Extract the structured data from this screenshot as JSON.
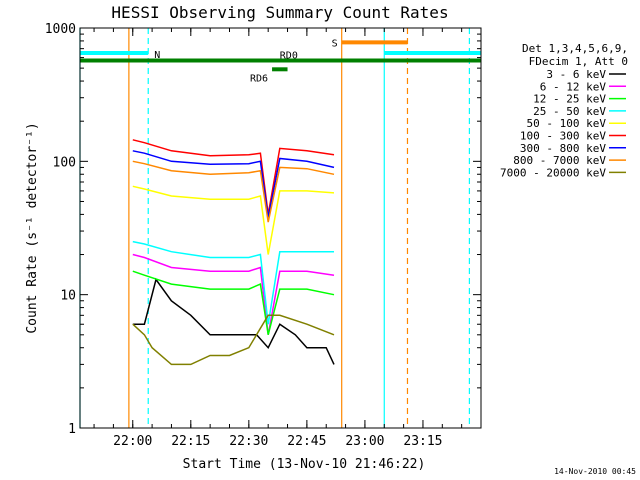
{
  "chart_data": {
    "type": "line",
    "title": "HESSI Observing Summary Count Rates",
    "xlabel": "Start Time (13-Nov-10 21:46:22)",
    "ylabel": "Count Rate (s⁻¹ detector⁻¹)",
    "y_scale": "log",
    "ylim": [
      1,
      1000
    ],
    "xlim": [
      "21:46:22",
      "23:30:00"
    ],
    "x_ticks": [
      "22:00",
      "22:15",
      "22:30",
      "22:45",
      "23:00",
      "23:15"
    ],
    "y_ticks": [
      "1",
      "10",
      "100",
      "1000"
    ],
    "grid": false,
    "legend_position": "right",
    "legend_header": [
      "Det 1,3,4,5,6,9,",
      "FDecim 1, Att 0"
    ],
    "series": [
      {
        "name": "3 - 6 keV",
        "color": "#000000",
        "x": [
          "22:00",
          "22:03",
          "22:06",
          "22:10",
          "22:15",
          "22:20",
          "22:25",
          "22:30",
          "22:32",
          "22:35",
          "22:38",
          "22:42",
          "22:45",
          "22:50",
          "22:52"
        ],
        "y": [
          6,
          6,
          13,
          9,
          7,
          5,
          5,
          5,
          5,
          4,
          6,
          5,
          4,
          4,
          3
        ]
      },
      {
        "name": "6 - 12 keV",
        "color": "#ff00ff",
        "x": [
          "22:00",
          "22:03",
          "22:10",
          "22:20",
          "22:30",
          "22:33",
          "22:35",
          "22:38",
          "22:45",
          "22:52"
        ],
        "y": [
          20,
          19,
          16,
          15,
          15,
          16,
          5,
          15,
          15,
          14
        ]
      },
      {
        "name": "12 - 25 keV",
        "color": "#00ff00",
        "x": [
          "22:00",
          "22:03",
          "22:10",
          "22:20",
          "22:30",
          "22:33",
          "22:35",
          "22:38",
          "22:45",
          "22:52"
        ],
        "y": [
          15,
          14,
          12,
          11,
          11,
          12,
          5,
          11,
          11,
          10
        ]
      },
      {
        "name": "25 - 50 keV",
        "color": "#00ffff",
        "x": [
          "22:00",
          "22:03",
          "22:10",
          "22:20",
          "22:30",
          "22:33",
          "22:35",
          "22:38",
          "22:45",
          "22:52"
        ],
        "y": [
          25,
          24,
          21,
          19,
          19,
          20,
          6,
          21,
          21,
          21
        ]
      },
      {
        "name": "50 - 100 keV",
        "color": "#ffff00",
        "x": [
          "22:00",
          "22:03",
          "22:10",
          "22:20",
          "22:30",
          "22:33",
          "22:35",
          "22:38",
          "22:45",
          "22:52"
        ],
        "y": [
          65,
          62,
          55,
          52,
          52,
          55,
          20,
          60,
          60,
          58
        ]
      },
      {
        "name": "100 - 300 keV",
        "color": "#ff0000",
        "x": [
          "22:00",
          "22:03",
          "22:10",
          "22:20",
          "22:30",
          "22:33",
          "22:35",
          "22:38",
          "22:45",
          "22:52"
        ],
        "y": [
          145,
          138,
          120,
          110,
          112,
          115,
          40,
          125,
          120,
          112
        ]
      },
      {
        "name": "300 - 800 keV",
        "color": "#0000ff",
        "x": [
          "22:00",
          "22:03",
          "22:10",
          "22:20",
          "22:30",
          "22:33",
          "22:35",
          "22:38",
          "22:45",
          "22:52"
        ],
        "y": [
          120,
          115,
          100,
          95,
          96,
          100,
          38,
          105,
          100,
          90
        ]
      },
      {
        "name": "800 - 7000 keV",
        "color": "#ff8800",
        "x": [
          "22:00",
          "22:03",
          "22:10",
          "22:20",
          "22:30",
          "22:33",
          "22:35",
          "22:38",
          "22:45",
          "22:52"
        ],
        "y": [
          100,
          96,
          85,
          80,
          82,
          85,
          35,
          90,
          88,
          80
        ]
      },
      {
        "name": "7000 - 20000 keV",
        "color": "#808000",
        "x": [
          "22:00",
          "22:03",
          "22:05",
          "22:10",
          "22:15",
          "22:20",
          "22:25",
          "22:30",
          "22:35",
          "22:38",
          "22:45",
          "22:52"
        ],
        "y": [
          6,
          5,
          4,
          3,
          3,
          3.5,
          3.5,
          4,
          7,
          7,
          6,
          5
        ]
      }
    ],
    "flags": [
      {
        "label": "N",
        "color": "#00ffff",
        "y": 650,
        "segments": [
          [
            "21:46:22",
            "22:04"
          ],
          [
            "23:05",
            "23:30"
          ]
        ]
      },
      {
        "label": "S",
        "color": "#ff8800",
        "y": 780,
        "segments": [
          [
            "22:54",
            "23:11"
          ]
        ]
      },
      {
        "label": "RD0",
        "color": "#008000",
        "y": 570,
        "segments": [
          [
            "21:46:22",
            "23:30"
          ]
        ]
      },
      {
        "label": "RD6",
        "color": "#008000",
        "y": 490,
        "segments": [
          [
            "22:36",
            "22:40"
          ]
        ]
      }
    ],
    "vertical_lines": [
      {
        "x": "21:46:22",
        "color": "#00ffff",
        "style": "solid"
      },
      {
        "x": "21:59",
        "color": "#ff8800",
        "style": "solid"
      },
      {
        "x": "22:04",
        "color": "#00ffff",
        "style": "dashed"
      },
      {
        "x": "22:54",
        "color": "#ff8800",
        "style": "solid"
      },
      {
        "x": "23:05",
        "color": "#00ffff",
        "style": "solid"
      },
      {
        "x": "23:11",
        "color": "#ff8800",
        "style": "dashed"
      },
      {
        "x": "23:27",
        "color": "#00ffff",
        "style": "dashed"
      }
    ]
  },
  "timestamp": "14-Nov-2010 00:45"
}
